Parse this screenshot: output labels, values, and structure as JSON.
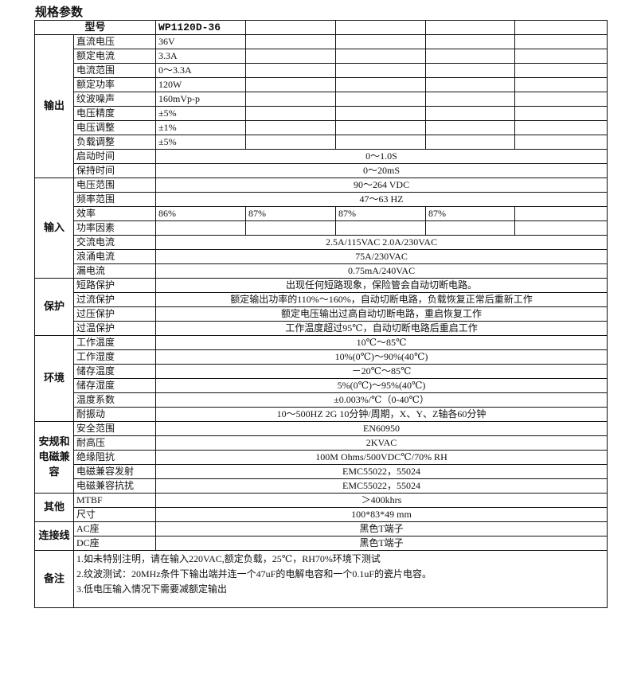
{
  "title": "规格参数",
  "header": {
    "label": "型号",
    "models": [
      "WP1120D-36",
      "",
      "",
      "",
      ""
    ]
  },
  "groups": [
    {
      "name": "输出",
      "rows": [
        {
          "label": "直流电压",
          "values": [
            "36V",
            "",
            "",
            "",
            ""
          ]
        },
        {
          "label": "额定电流",
          "values": [
            "3.3A",
            "",
            "",
            "",
            ""
          ]
        },
        {
          "label": "电流范围",
          "values": [
            "0～3.3A",
            "",
            "",
            "",
            ""
          ]
        },
        {
          "label": "额定功率",
          "values": [
            "120W",
            "",
            "",
            "",
            ""
          ]
        },
        {
          "label": "纹波噪声",
          "values": [
            "160mVp-p",
            "",
            "",
            "",
            ""
          ]
        },
        {
          "label": "电压精度",
          "values": [
            "±5%",
            "",
            "",
            "",
            ""
          ]
        },
        {
          "label": "电压调整",
          "values": [
            "±1%",
            "",
            "",
            "",
            ""
          ]
        },
        {
          "label": "负载调整",
          "values": [
            "±5%",
            "",
            "",
            "",
            ""
          ]
        },
        {
          "label": "启动时间",
          "value": "0～1.0S"
        },
        {
          "label": "保持时间",
          "value": "0～20mS"
        }
      ]
    },
    {
      "name": "输入",
      "rows": [
        {
          "label": "电压范围",
          "value": "90～264 VDC"
        },
        {
          "label": "频率范围",
          "value": "47～63 HZ"
        },
        {
          "label": "效率",
          "values": [
            "86%",
            "87%",
            "87%",
            "87%",
            ""
          ]
        },
        {
          "label": "功率因素",
          "values": [
            "",
            "",
            "",
            "",
            ""
          ]
        },
        {
          "label": "交流电流",
          "value": "2.5A/115VAC  2.0A/230VAC"
        },
        {
          "label": "浪涌电流",
          "value": "75A/230VAC"
        },
        {
          "label": "漏电流",
          "value": "0.75mA/240VAC"
        }
      ]
    },
    {
      "name": "保护",
      "rows": [
        {
          "label": "短路保护",
          "value": "出现任何短路现象，保险管会自动切断电路。"
        },
        {
          "label": "过流保护",
          "value": "额定输出功率的110%～160%，自动切断电路，负载恢复正常后重新工作"
        },
        {
          "label": "过压保护",
          "value": "额定电压输出过高自动切断电路，重启恢复工作"
        },
        {
          "label": "过温保护",
          "value": "工作温度超过95℃，自动切断电路后重启工作"
        }
      ]
    },
    {
      "name": "环境",
      "rows": [
        {
          "label": "工作温度",
          "value": "10℃～85℃"
        },
        {
          "label": "工作湿度",
          "value": "10%(0℃)～90%(40℃)"
        },
        {
          "label": "储存温度",
          "value": "－20℃～85℃"
        },
        {
          "label": "储存湿度",
          "value": "5%(0℃)～95%(40℃)"
        },
        {
          "label": "温度系数",
          "value": "±0.003%/℃（0-40℃）"
        },
        {
          "label": "耐振动",
          "value": "10～500HZ 2G 10分钟/周期，X、Y、Z轴各60分钟"
        }
      ]
    },
    {
      "name": "安规和电磁兼容",
      "rows": [
        {
          "label": "安全范围",
          "value": "EN60950"
        },
        {
          "label": "耐高压",
          "value": "2KVAC"
        },
        {
          "label": "绝缘阻抗",
          "value": "100M Ohms/500VDC℃/70% RH"
        },
        {
          "label": "电磁兼容发射",
          "value": "EMC55022，55024"
        },
        {
          "label": "电磁兼容抗扰",
          "value": "EMC55022，55024"
        }
      ]
    },
    {
      "name": "其他",
      "rows": [
        {
          "label": "MTBF",
          "value": "＞400khrs"
        },
        {
          "label": "尺寸",
          "value": "100*83*49 mm"
        }
      ]
    },
    {
      "name": "连接线",
      "rows": [
        {
          "label": "AC座",
          "value": "黑色T端子"
        },
        {
          "label": "DC座",
          "value": "黑色T端子"
        }
      ]
    }
  ],
  "notes": {
    "name": "备注",
    "lines": [
      "1.如未特别注明，请在输入220VAC,额定负载，25℃，RH70%环境下测试",
      "2.纹波测试：20MHz条件下输出端并连一个47uF的电解电容和一个0.1uF的瓷片电容。",
      "3.低电压输入情况下需要减额定输出"
    ]
  }
}
